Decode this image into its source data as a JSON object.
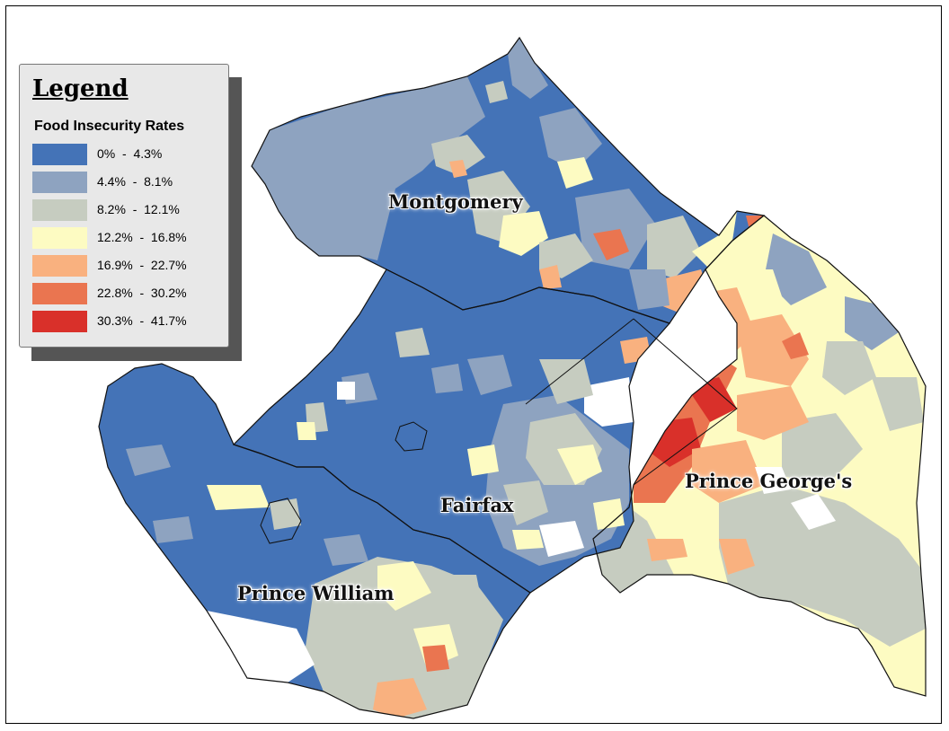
{
  "legend": {
    "title": "Legend",
    "subtitle": "Food Insecurity Rates",
    "classes": [
      {
        "label": "0%  -  4.3%",
        "color": "#4473b7"
      },
      {
        "label": "4.4%  -  8.1%",
        "color": "#8ea3c0"
      },
      {
        "label": "8.2%  -  12.1%",
        "color": "#c6ccc0"
      },
      {
        "label": "12.2%  -  16.8%",
        "color": "#fdfbc2"
      },
      {
        "label": "16.9%  -  22.7%",
        "color": "#f9b17f"
      },
      {
        "label": "22.8%  -  30.2%",
        "color": "#ea7550"
      },
      {
        "label": "30.3%  -  41.7%",
        "color": "#d9302a"
      }
    ]
  },
  "counties": [
    {
      "name": "Montgomery"
    },
    {
      "name": "Prince George's"
    },
    {
      "name": "Fairfax"
    },
    {
      "name": "Prince William"
    }
  ]
}
